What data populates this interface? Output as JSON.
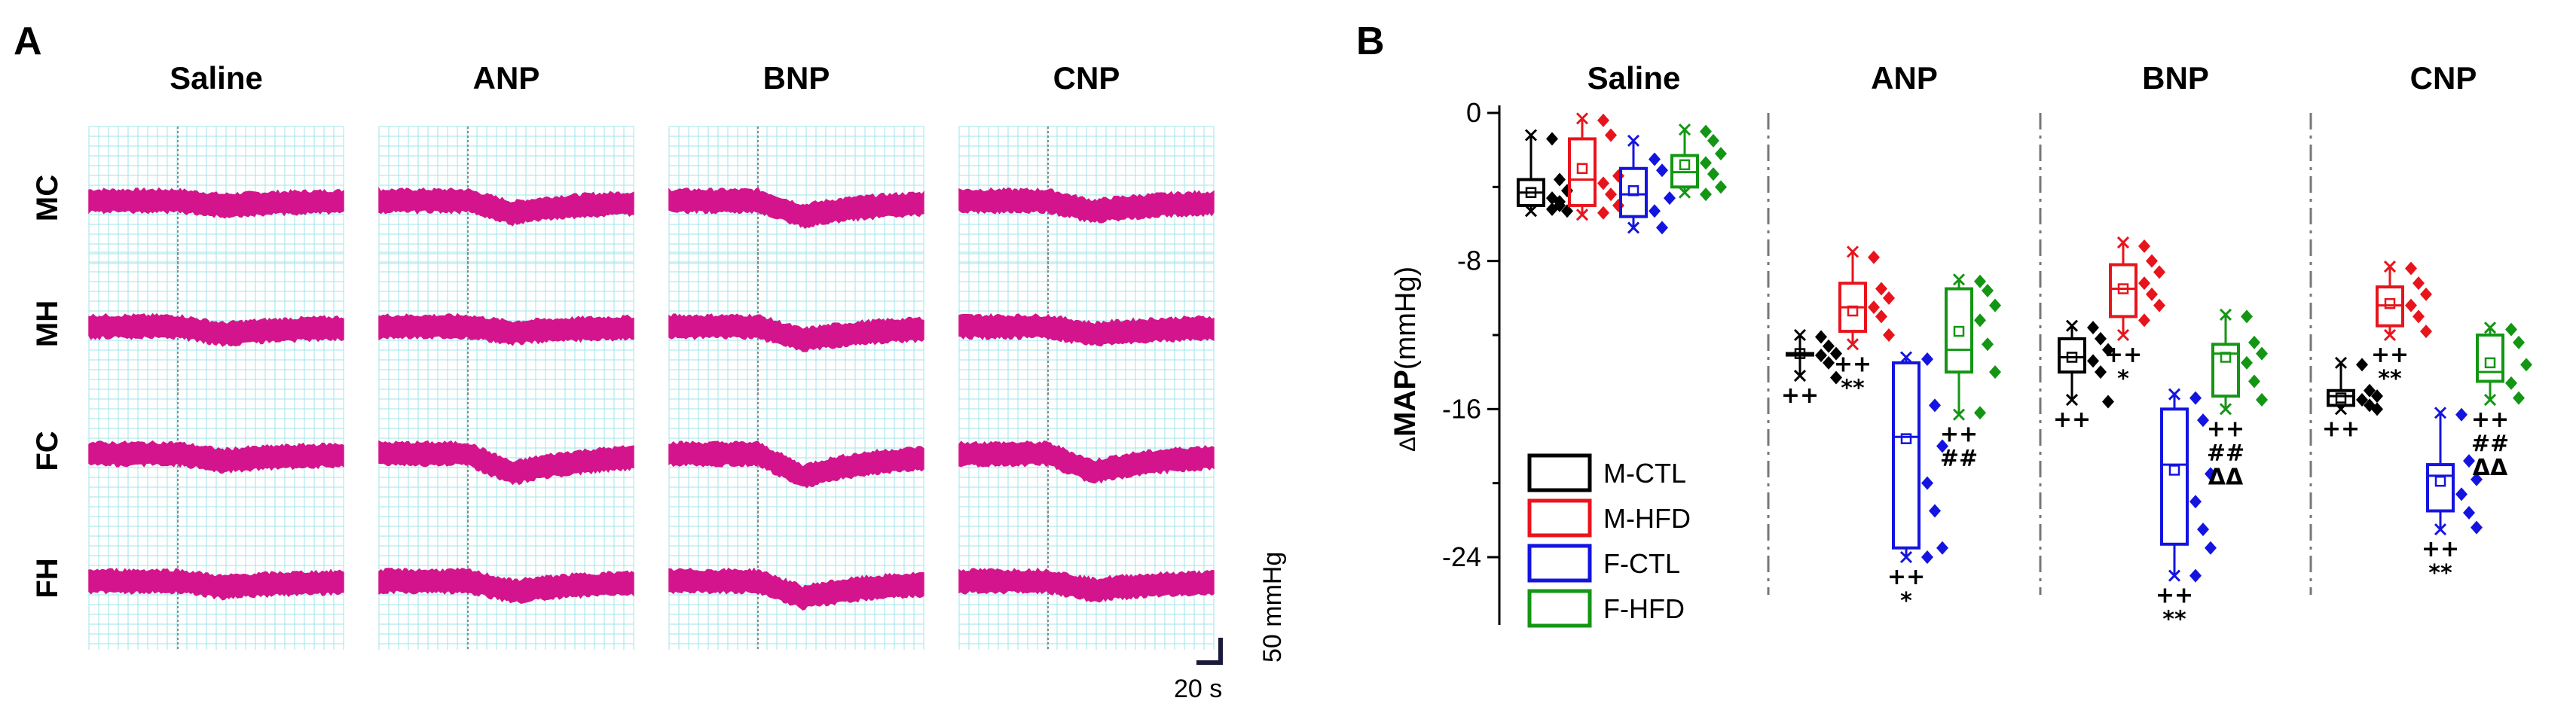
{
  "panel_a": {
    "letter": "A",
    "columns": [
      "Saline",
      "ANP",
      "BNP",
      "CNP"
    ],
    "rows": [
      "MC",
      "MH",
      "FC",
      "FH"
    ],
    "trace_color": "#d4148c",
    "grid_color": "#9fe6ea",
    "scale_y_label": "50 mmHg",
    "scale_x_label": "20 s"
  },
  "chart_data": {
    "type": "box",
    "panel_letter": "B",
    "title": "",
    "ylabel_delta": "Δ",
    "ylabel_main": "MAP",
    "ylabel_units": "(mmHg)",
    "ylim": [
      -27,
      0
    ],
    "yticks": [
      0,
      -8,
      -16,
      -24
    ],
    "ytick_labels": [
      "0",
      "-8",
      "-16",
      "-24"
    ],
    "groups": [
      "Saline",
      "ANP",
      "BNP",
      "CNP"
    ],
    "series": [
      {
        "name": "M-CTL",
        "color": "#000000",
        "marker": "diamond"
      },
      {
        "name": "M-HFD",
        "color": "#e8141c",
        "marker": "diamond"
      },
      {
        "name": "F-CTL",
        "color": "#1414e0",
        "marker": "diamond"
      },
      {
        "name": "F-HFD",
        "color": "#149614",
        "marker": "diamond"
      }
    ],
    "boxes": [
      {
        "group": "Saline",
        "series": "M-CTL",
        "whisker_min": -5.3,
        "q1": -5.0,
        "median": -4.3,
        "q3": -3.6,
        "whisker_max": -1.2,
        "mean": -4.3,
        "points": [
          -1.4,
          -3.6,
          -4.2,
          -4.6,
          -5.0,
          -5.3,
          -5.2,
          -4.8
        ],
        "sig": []
      },
      {
        "group": "Saline",
        "series": "M-HFD",
        "whisker_min": -5.5,
        "q1": -5.0,
        "median": -3.6,
        "q3": -1.4,
        "whisker_max": -0.3,
        "mean": -3.0,
        "points": [
          -0.4,
          -1.2,
          -3.4,
          -3.8,
          -4.4,
          -5.0,
          -5.4
        ],
        "sig": []
      },
      {
        "group": "Saline",
        "series": "M-HFD_pad",
        "skip": true
      },
      {
        "group": "Saline",
        "series": "F-CTL",
        "whisker_min": -6.2,
        "q1": -5.6,
        "median": -4.4,
        "q3": -3.0,
        "whisker_max": -1.5,
        "mean": -4.2,
        "points": [
          -2.5,
          -3.1,
          -4.6,
          -5.3,
          -6.2
        ],
        "sig": []
      },
      {
        "group": "Saline",
        "series": "F-HFD",
        "whisker_min": -4.3,
        "q1": -4.0,
        "median": -3.2,
        "q3": -2.3,
        "whisker_max": -0.9,
        "mean": -2.8,
        "points": [
          -1.0,
          -1.5,
          -2.2,
          -2.7,
          -3.3,
          -4.0,
          -4.4
        ],
        "sig": []
      },
      {
        "group": "ANP",
        "series": "M-CTL",
        "whisker_min": -14.2,
        "q1": -13.0,
        "median": -13.0,
        "q3": -13.0,
        "whisker_max": -12.0,
        "mean": -13.0,
        "points": [
          -12.1,
          -12.6,
          -13.0,
          -13.1,
          -13.5,
          -14.3
        ],
        "sig": [
          "++"
        ]
      },
      {
        "group": "ANP",
        "series": "M-HFD",
        "whisker_min": -12.5,
        "q1": -11.8,
        "median": -10.5,
        "q3": -9.2,
        "whisker_max": -7.5,
        "mean": -10.7,
        "points": [
          -7.8,
          -9.5,
          -10.0,
          -10.5,
          -11.0,
          -12.0
        ],
        "sig": [
          "++",
          "**"
        ]
      },
      {
        "group": "ANP",
        "series": "F-CTL",
        "whisker_min": -24.0,
        "q1": -23.5,
        "median": -17.5,
        "q3": -13.5,
        "whisker_max": -13.2,
        "mean": -17.6,
        "points": [
          -13.3,
          -15.8,
          -18.0,
          -20.0,
          -21.5,
          -23.5,
          -24.0
        ],
        "sig": [
          "++",
          "*"
        ]
      },
      {
        "group": "ANP",
        "series": "F-HFD",
        "whisker_min": -16.3,
        "q1": -14.0,
        "median": -12.8,
        "q3": -9.5,
        "whisker_max": -9.0,
        "mean": -11.8,
        "points": [
          -9.1,
          -9.6,
          -10.4,
          -11.2,
          -12.5,
          -14.0,
          -16.2
        ],
        "sig": [
          "++",
          "##"
        ]
      },
      {
        "group": "BNP",
        "series": "M-CTL",
        "whisker_min": -15.5,
        "q1": -14.0,
        "median": -13.2,
        "q3": -12.2,
        "whisker_max": -11.5,
        "mean": -13.2,
        "points": [
          -11.6,
          -12.2,
          -12.8,
          -13.4,
          -14.0,
          -15.6
        ],
        "sig": [
          "++"
        ]
      },
      {
        "group": "BNP",
        "series": "M-HFD",
        "whisker_min": -12.0,
        "q1": -11.0,
        "median": -9.5,
        "q3": -8.2,
        "whisker_max": -7.0,
        "mean": -9.5,
        "points": [
          -7.2,
          -8.0,
          -8.6,
          -9.2,
          -9.8,
          -10.4,
          -11.2
        ],
        "sig": [
          "++",
          "*"
        ]
      },
      {
        "group": "BNP",
        "series": "F-CTL",
        "whisker_min": -25.0,
        "q1": -23.3,
        "median": -19.0,
        "q3": -16.0,
        "whisker_max": -15.2,
        "mean": -19.3,
        "points": [
          -15.4,
          -16.6,
          -19.5,
          -21.0,
          -22.5,
          -23.5,
          -25.0
        ],
        "sig": [
          "++",
          "**"
        ]
      },
      {
        "group": "BNP",
        "series": "F-HFD",
        "whisker_min": -16.0,
        "q1": -15.3,
        "median": -13.0,
        "q3": -12.5,
        "whisker_max": -10.9,
        "mean": -13.2,
        "points": [
          -11.0,
          -12.4,
          -13.0,
          -13.5,
          -14.5,
          -15.5
        ],
        "sig": [
          "++",
          "##",
          "ΔΔ"
        ]
      },
      {
        "group": "CNP",
        "series": "M-CTL",
        "whisker_min": -16.0,
        "q1": -15.8,
        "median": -15.3,
        "q3": -15.0,
        "whisker_max": -13.5,
        "mean": -15.4,
        "points": [
          -13.6,
          -15.0,
          -15.3,
          -15.5,
          -15.8,
          -16.0
        ],
        "sig": [
          "++"
        ]
      },
      {
        "group": "CNP",
        "series": "M-HFD",
        "whisker_min": -12.0,
        "q1": -11.5,
        "median": -10.4,
        "q3": -9.4,
        "whisker_max": -8.3,
        "mean": -10.3,
        "points": [
          -8.4,
          -9.2,
          -9.8,
          -10.4,
          -11.0,
          -11.8
        ],
        "sig": [
          "++",
          "**"
        ]
      },
      {
        "group": "CNP",
        "series": "F-CTL",
        "whisker_min": -22.5,
        "q1": -21.5,
        "median": -19.6,
        "q3": -19.0,
        "whisker_max": -16.2,
        "mean": -19.9,
        "points": [
          -16.3,
          -18.8,
          -19.8,
          -20.6,
          -21.6,
          -22.4
        ],
        "sig": [
          "++",
          "**"
        ]
      },
      {
        "group": "CNP",
        "series": "F-HFD",
        "whisker_min": -15.5,
        "q1": -14.5,
        "median": -14.0,
        "q3": -12.0,
        "whisker_max": -11.6,
        "mean": -13.5,
        "points": [
          -11.7,
          -12.4,
          -13.6,
          -14.6,
          -15.4
        ],
        "sig": [
          "++",
          "##",
          "ΔΔ"
        ]
      }
    ],
    "legend": [
      "M-CTL",
      "M-HFD",
      "F-CTL",
      "F-HFD"
    ]
  }
}
